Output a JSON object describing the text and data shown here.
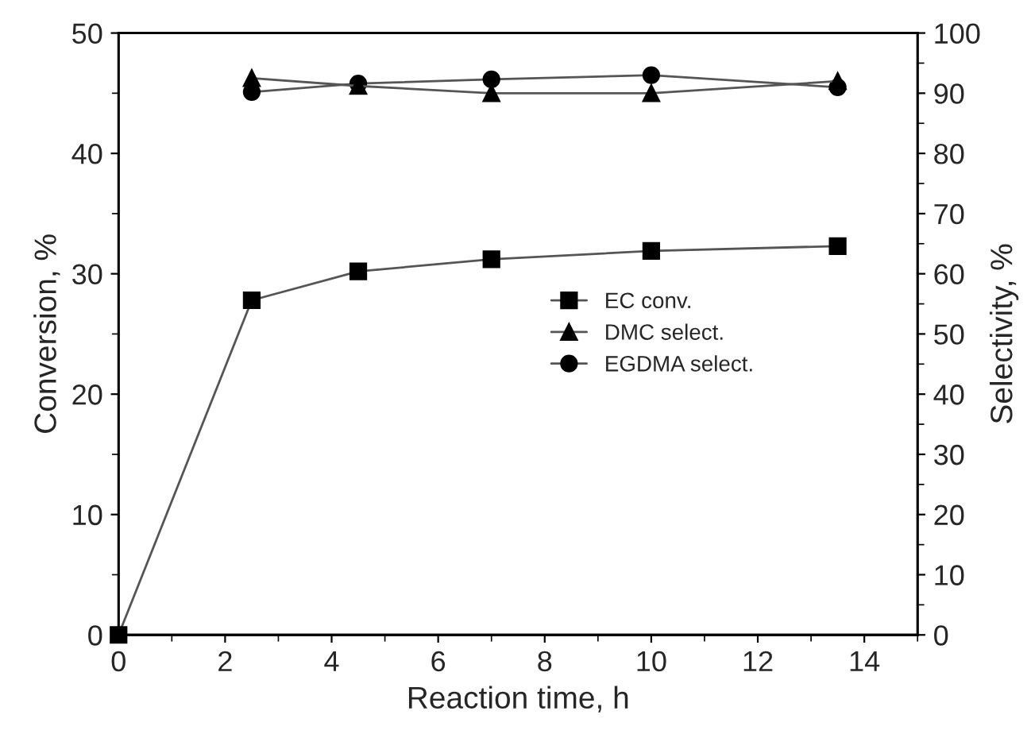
{
  "chart_data": {
    "type": "line",
    "xlabel": "Reaction time, h",
    "ylabel": "Conversion, %",
    "y2label": "Selectivity, %",
    "x": [
      0,
      2.5,
      4.5,
      7,
      10,
      13.5
    ],
    "series": [
      {
        "name": "EC conv.",
        "color": "#000000",
        "marker": "square",
        "values": [
          0,
          27.8,
          30.2,
          31.2,
          31.9,
          32.3
        ]
      },
      {
        "name": "DMC select.",
        "color": "#000000",
        "marker": "triangle",
        "axis": "y2",
        "x": [
          2.5,
          4.5,
          7,
          10,
          13.5
        ],
        "values": [
          92.5,
          91.2,
          90.0,
          90.0,
          92.0
        ]
      },
      {
        "name": "EGDMA select.",
        "color": "#000000",
        "marker": "circle",
        "axis": "y2",
        "x": [
          2.5,
          4.5,
          7,
          10,
          13.5
        ],
        "values": [
          90.2,
          91.6,
          92.3,
          93.0,
          91.0
        ]
      }
    ],
    "xlim": [
      0,
      15
    ],
    "xticks": [
      0,
      2,
      4,
      6,
      8,
      10,
      12,
      14
    ],
    "ylim": [
      0,
      50
    ],
    "yticks": [
      0,
      10,
      20,
      30,
      40,
      50
    ],
    "y2lim": [
      0,
      100
    ],
    "y2ticks": [
      0,
      10,
      20,
      30,
      40,
      50,
      60,
      70,
      80,
      90,
      100
    ],
    "grid": false,
    "legend": "right",
    "line_style": "solid"
  }
}
